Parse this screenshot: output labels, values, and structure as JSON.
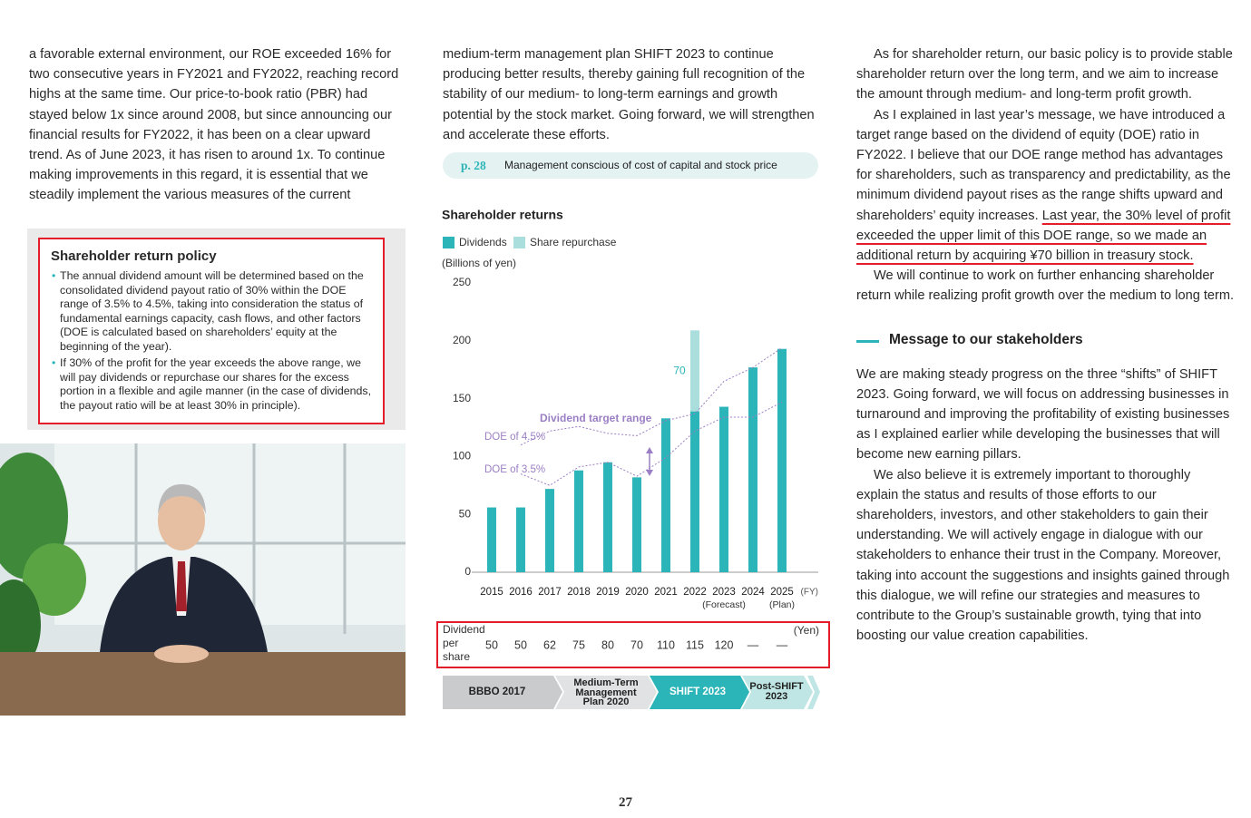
{
  "left": {
    "paragraph": "a favorable external environment, our ROE exceeded 16% for two consecutive years in FY2021 and FY2022, reaching record highs at the same time. Our price-to-book ratio (PBR) had stayed below 1x since around 2008, but since announcing our financial results for FY2022, it has been on a clear upward trend. As of June 2023, it has risen to around 1x. To continue making improvements in this regard, it is essential that we steadily implement the various measures of the current",
    "policy": {
      "title": "Shareholder return policy",
      "bullets": [
        "The annual dividend amount will be determined based on the consolidated dividend payout ratio of 30% within the DOE range of 3.5% to 4.5%, taking into consideration the status of fundamental earnings capacity, cash flows, and other factors (DOE is calculated based on shareholders’ equity at the beginning of the year).",
        "If 30% of the profit for the year exceeds the above range, we will pay dividends or repurchase our shares for the excess portion in a flexible and agile manner (in the case of dividends, the payout ratio will be at least 30% in principle)."
      ]
    }
  },
  "middle": {
    "paragraph": "medium-term management plan SHIFT 2023 to continue producing better results, thereby gaining full recognition of the stability of our medium- to long-term earnings and growth potential by the stock market. Going forward, we will strengthen and accelerate these efforts.",
    "reference": {
      "page": "p. 28",
      "text": "Management conscious of cost of capital and stock price"
    },
    "dividend_per_share": {
      "label": "Dividend per share",
      "unit": "(Yen)",
      "values": [
        50,
        50,
        62,
        75,
        80,
        70,
        110,
        115,
        120,
        "—",
        "—"
      ]
    },
    "phases": [
      "BBBO 2017",
      "Medium-Term Management Plan 2020",
      "SHIFT 2023",
      "Post-SHIFT 2023"
    ]
  },
  "chart_data": {
    "type": "bar",
    "title": "Shareholder returns",
    "y_label": "(Billions of yen)",
    "x_label": "(FY)",
    "categories": [
      "2015",
      "2016",
      "2017",
      "2018",
      "2019",
      "2020",
      "2021",
      "2022",
      "2023",
      "2024",
      "2025"
    ],
    "category_notes": [
      null,
      null,
      null,
      null,
      null,
      null,
      null,
      null,
      "(Forecast)",
      null,
      "(Plan)"
    ],
    "series": [
      {
        "name": "Dividends",
        "color": "#2bb5b8",
        "values": [
          56,
          56,
          72,
          88,
          95,
          82,
          133,
          139,
          143,
          177,
          193
        ]
      },
      {
        "name": "Share repurchase",
        "color": "#a9dedd",
        "values": [
          null,
          null,
          null,
          null,
          null,
          null,
          null,
          70,
          null,
          null,
          null
        ],
        "value_labels": [
          null,
          null,
          null,
          null,
          null,
          null,
          null,
          "70",
          null,
          null,
          null
        ]
      }
    ],
    "doe_lines": [
      {
        "label": "DOE of 4.5%",
        "color": "#9b7fc4",
        "values": [
          null,
          110,
          122,
          126,
          120,
          118,
          131,
          137,
          165,
          177,
          194
        ]
      },
      {
        "label": "DOE of 3.5%",
        "color": "#9b7fc4",
        "values": [
          null,
          85,
          75,
          91,
          95,
          83,
          99,
          122,
          134,
          134,
          147
        ]
      }
    ],
    "range_label": "Dividend target range",
    "ylim": [
      0,
      250
    ],
    "yticks": [
      0,
      50,
      100,
      150,
      200,
      250
    ]
  },
  "right": {
    "paragraph1": "As for shareholder return, our basic policy is to provide stable shareholder return over the long term, and we aim to increase the amount through medium- and long-term profit growth.",
    "paragraph2": "As I explained in last year’s message, we have introduced a target range based on the dividend of equity (DOE) ratio in FY2022. I believe that our DOE range method has advantages for shareholders, such as transparency and predictability, as the minimum dividend payout rises as the range shifts upward and shareholders’ equity increases. ",
    "paragraph2_highlight": "Last year, the 30% level of profit exceeded the upper limit of this DOE range, so we made an additional return by acquiring ¥70 billion in treasury stock.",
    "paragraph3": "We will continue to work on further enhancing shareholder return while realizing profit growth over the medium to long term.",
    "heading": "Message to our stakeholders",
    "paragraph4": "We are making steady progress on the three “shifts” of SHIFT 2023. Going forward, we will focus on addressing businesses in turnaround and improving the profitability of existing businesses as I explained earlier while developing the businesses that will become new earning pillars.",
    "paragraph5": "We also believe it is extremely important to thoroughly explain the status and results of those efforts to our shareholders, investors, and other stakeholders to gain their understanding. We will actively engage in dialogue with our stakeholders to enhance their trust in the Company. Moreover, taking into account the suggestions and insights gained through this dialogue, we will refine our strategies and measures to contribute to the Group’s sustainable growth, tying that into boosting our value creation capabilities."
  },
  "page_number": "27"
}
